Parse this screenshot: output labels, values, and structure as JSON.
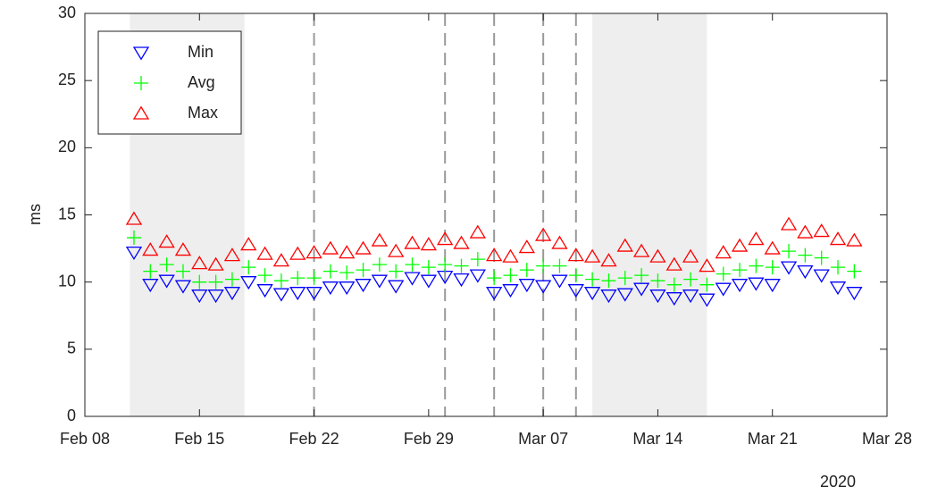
{
  "chart_data": {
    "type": "scatter",
    "ylabel": "ms",
    "x_secondary_label": "2020",
    "x": [
      "2020-02-11",
      "2020-02-12",
      "2020-02-13",
      "2020-02-14",
      "2020-02-15",
      "2020-02-16",
      "2020-02-17",
      "2020-02-18",
      "2020-02-19",
      "2020-02-20",
      "2020-02-21",
      "2020-02-22",
      "2020-02-23",
      "2020-02-24",
      "2020-02-25",
      "2020-02-26",
      "2020-02-27",
      "2020-02-28",
      "2020-02-29",
      "2020-03-01",
      "2020-03-02",
      "2020-03-03",
      "2020-03-04",
      "2020-03-05",
      "2020-03-06",
      "2020-03-07",
      "2020-03-08",
      "2020-03-09",
      "2020-03-10",
      "2020-03-11",
      "2020-03-12",
      "2020-03-13",
      "2020-03-14",
      "2020-03-15",
      "2020-03-16",
      "2020-03-17",
      "2020-03-18",
      "2020-03-19",
      "2020-03-20",
      "2020-03-21",
      "2020-03-22",
      "2020-03-23",
      "2020-03-24",
      "2020-03-25",
      "2020-03-26"
    ],
    "series": [
      {
        "name": "Min",
        "color": "#0000ff",
        "marker": "triangle-down",
        "values": [
          12.2,
          9.8,
          10.1,
          9.7,
          9.0,
          9.0,
          9.2,
          10.0,
          9.4,
          9.1,
          9.2,
          9.2,
          9.6,
          9.6,
          9.8,
          10.1,
          9.7,
          10.3,
          10.1,
          10.4,
          10.2,
          10.5,
          9.2,
          9.4,
          9.8,
          9.7,
          10.1,
          9.4,
          9.2,
          9.0,
          9.1,
          9.5,
          9.0,
          8.8,
          9.0,
          8.7,
          9.5,
          9.8,
          9.9,
          9.8,
          11.1,
          10.8,
          10.5,
          9.6,
          9.2
        ]
      },
      {
        "name": "Avg",
        "color": "#00ff00",
        "marker": "plus",
        "values": [
          13.3,
          10.8,
          11.3,
          10.8,
          10.0,
          10.0,
          10.2,
          11.1,
          10.5,
          10.1,
          10.3,
          10.3,
          10.8,
          10.7,
          10.9,
          11.3,
          10.8,
          11.3,
          11.1,
          11.3,
          11.2,
          11.7,
          10.3,
          10.5,
          10.9,
          11.2,
          11.2,
          10.5,
          10.2,
          10.1,
          10.3,
          10.5,
          10.1,
          9.8,
          10.2,
          9.8,
          10.6,
          10.9,
          11.2,
          11.1,
          12.3,
          12.0,
          11.8,
          11.1,
          10.8
        ]
      },
      {
        "name": "Max",
        "color": "#ff0000",
        "marker": "triangle-up",
        "values": [
          14.7,
          12.4,
          13.0,
          12.4,
          11.4,
          11.3,
          12.0,
          12.8,
          12.1,
          11.6,
          12.1,
          12.2,
          12.5,
          12.2,
          12.5,
          13.1,
          12.3,
          12.9,
          12.8,
          13.2,
          12.9,
          13.7,
          12.0,
          11.9,
          12.6,
          13.5,
          12.9,
          12.0,
          11.9,
          11.6,
          12.7,
          12.3,
          11.9,
          11.3,
          11.9,
          11.2,
          12.2,
          12.7,
          13.2,
          12.5,
          14.3,
          13.7,
          13.8,
          13.2,
          13.1
        ]
      }
    ],
    "xlim": [
      "2020-02-08",
      "2020-03-28"
    ],
    "xticks": [
      {
        "value": "2020-02-08",
        "label": "Feb 08"
      },
      {
        "value": "2020-02-15",
        "label": "Feb 15"
      },
      {
        "value": "2020-02-22",
        "label": "Feb 22"
      },
      {
        "value": "2020-02-29",
        "label": "Feb 29"
      },
      {
        "value": "2020-03-07",
        "label": "Mar 07"
      },
      {
        "value": "2020-03-14",
        "label": "Mar 14"
      },
      {
        "value": "2020-03-21",
        "label": "Mar 21"
      },
      {
        "value": "2020-03-28",
        "label": "Mar 28"
      }
    ],
    "ylim": [
      0,
      30
    ],
    "yticks": [
      0,
      5,
      10,
      15,
      20,
      25,
      30
    ],
    "shaded_spans": [
      [
        "2020-02-10T18:00:00Z",
        "2020-02-17T18:00:00Z"
      ],
      [
        "2020-03-10T00:00:00Z",
        "2020-03-17T00:00:00Z"
      ]
    ],
    "span_color": "#eeeeee",
    "vlines": [
      "2020-02-22",
      "2020-03-01",
      "2020-03-04",
      "2020-03-07",
      "2020-03-09"
    ],
    "vline_color": "#999999",
    "legend": "upper left"
  }
}
